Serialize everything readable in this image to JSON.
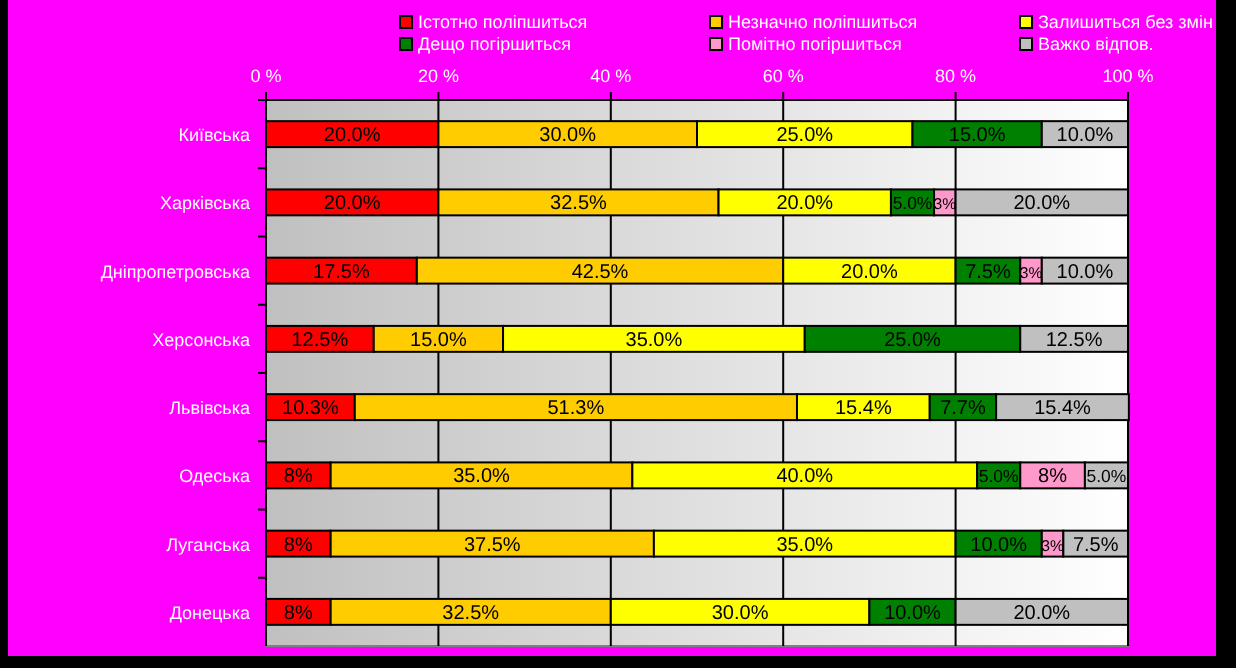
{
  "chart_data": {
    "type": "bar",
    "orientation": "horizontal",
    "stacked": true,
    "categories": [
      "Київська",
      "Харківська",
      "Дніпропетровська",
      "Херсонська",
      "Львівська",
      "Одеська",
      "Луганська",
      "Донецька"
    ],
    "series": [
      {
        "name": "Істотно поліпшиться",
        "color": "#ff0000",
        "values": [
          20,
          20,
          17.5,
          12.5,
          10.3,
          7.5,
          7.5,
          7.5
        ],
        "value_labels": [
          "20.0%",
          "20.0%",
          "17.5%",
          "12.5%",
          "10.3%",
          "8%",
          "8%",
          "8%"
        ]
      },
      {
        "name": "Незначно поліпшиться",
        "color": "#ffcc00",
        "values": [
          30,
          32.5,
          42.5,
          15,
          51.3,
          35,
          37.5,
          32.5
        ],
        "value_labels": [
          "30.0%",
          "32.5%",
          "42.5%",
          "15.0%",
          "51.3%",
          "35.0%",
          "37.5%",
          "32.5%"
        ]
      },
      {
        "name": "Залишиться без змін",
        "color": "#ffff00",
        "values": [
          25,
          20,
          20,
          35,
          15.4,
          40,
          35,
          30
        ],
        "value_labels": [
          "25.0%",
          "20.0%",
          "20.0%",
          "35.0%",
          "15.4%",
          "40.0%",
          "35.0%",
          "30.0%"
        ]
      },
      {
        "name": "Дещо погіршиться",
        "color": "#008000",
        "values": [
          15,
          5,
          7.5,
          25,
          7.7,
          5,
          10,
          10
        ],
        "value_labels": [
          "15.0%",
          "5.0%",
          "7.5%",
          "25.0%",
          "7.7%",
          "5.0%",
          "10.0%",
          "10.0%"
        ]
      },
      {
        "name": "Помітно погіршиться",
        "color": "#ff99cc",
        "values": [
          null,
          2.5,
          2.5,
          null,
          null,
          7.5,
          2.5,
          null
        ],
        "value_labels": [
          null,
          "3%",
          "3%",
          null,
          null,
          "8%",
          "3%",
          null
        ]
      },
      {
        "name": "Важко відпов.",
        "color": "#c0c0c0",
        "values": [
          10,
          20,
          10,
          12.5,
          15.4,
          5,
          7.5,
          20
        ],
        "value_labels": [
          "10.0%",
          "20.0%",
          "10.0%",
          "12.5%",
          "15.4%",
          "5.0%",
          "7.5%",
          "20.0%"
        ]
      }
    ],
    "xlim": [
      0,
      100
    ],
    "xticks": [
      {
        "value": 0,
        "label": "0 %"
      },
      {
        "value": 20,
        "label": "20 %"
      },
      {
        "value": 40,
        "label": "40 %"
      },
      {
        "value": 60,
        "label": "60 %"
      },
      {
        "value": 80,
        "label": "80 %"
      },
      {
        "value": 100,
        "label": "100 %"
      }
    ],
    "grid": "x",
    "legend": "top"
  }
}
